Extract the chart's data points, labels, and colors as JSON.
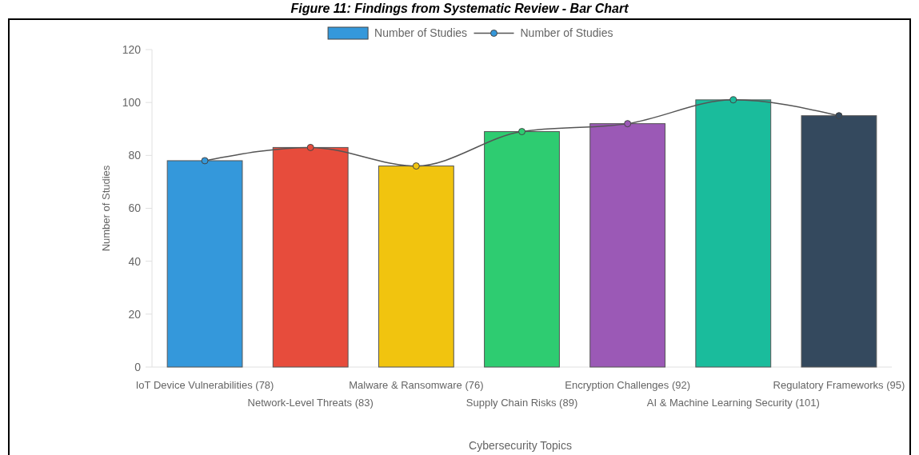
{
  "chart_data": {
    "type": "bar",
    "title": "Figure 11: Findings from Systematic Review - Bar Chart",
    "xlabel": "Cybersecurity Topics",
    "ylabel": "Number of Studies",
    "categories": [
      "IoT Device Vulnerabilities (78)",
      "Network-Level Threats (83)",
      "Malware & Ransomware (76)",
      "Supply Chain Risks (89)",
      "Encryption Challenges (92)",
      "AI & Machine Learning Security (101)",
      "Regulatory Frameworks (95)"
    ],
    "series": [
      {
        "name": "Number of Studies",
        "colors": [
          "#3498db",
          "#e74c3c",
          "#f1c40f",
          "#2ecc71",
          "#9b59b6",
          "#1abc9c",
          "#34495e"
        ],
        "values": [
          78,
          83,
          76,
          89,
          92,
          101,
          95
        ]
      },
      {
        "name": "Number of Studies",
        "type": "line",
        "color": "#555555",
        "colors": [
          "#3498db",
          "#e74c3c",
          "#f1c40f",
          "#2ecc71",
          "#9b59b6",
          "#1abc9c",
          "#34495e"
        ],
        "values": [
          78,
          83,
          76,
          89,
          92,
          101,
          95
        ]
      }
    ],
    "ylim": [
      0,
      120
    ],
    "yticks": [
      0,
      20,
      40,
      60,
      80,
      100,
      120
    ],
    "grid": false,
    "legend": "top",
    "marker": "circle"
  }
}
